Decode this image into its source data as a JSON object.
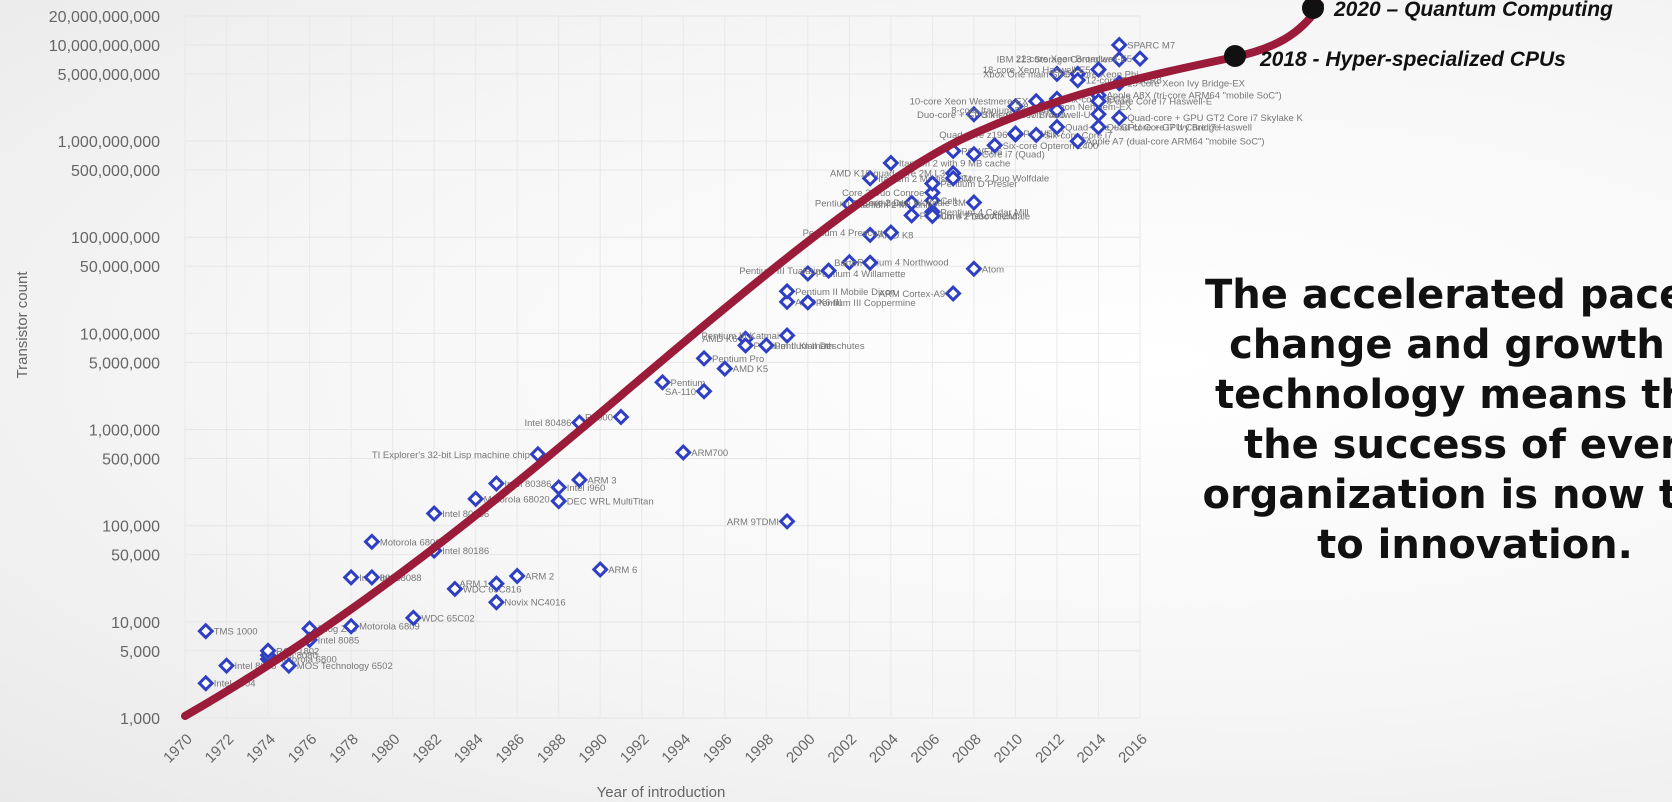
{
  "chart_data": {
    "type": "scatter",
    "title": "",
    "xlabel": "Year of introduction",
    "ylabel": "Transistor count",
    "y_scale": "log",
    "xlim": [
      1970,
      2016
    ],
    "ylim": [
      1000,
      20000000000
    ],
    "x_ticks": [
      "1970",
      "1972",
      "1974",
      "1976",
      "1978",
      "1980",
      "1982",
      "1984",
      "1986",
      "1988",
      "1990",
      "1992",
      "1994",
      "1996",
      "1998",
      "2000",
      "2002",
      "2004",
      "2006",
      "2008",
      "2010",
      "2012",
      "2014",
      "2016"
    ],
    "y_ticks": [
      {
        "value": 1000,
        "label": "1,000"
      },
      {
        "value": 5000,
        "label": "5,000"
      },
      {
        "value": 10000,
        "label": "10,000"
      },
      {
        "value": 50000,
        "label": "50,000"
      },
      {
        "value": 100000,
        "label": "100,000"
      },
      {
        "value": 500000,
        "label": "500,000"
      },
      {
        "value": 1000000,
        "label": "1,000,000"
      },
      {
        "value": 5000000,
        "label": "5,000,000"
      },
      {
        "value": 10000000,
        "label": "10,000,000"
      },
      {
        "value": 50000000,
        "label": "50,000,000"
      },
      {
        "value": 100000000,
        "label": "100,000,000"
      },
      {
        "value": 500000000,
        "label": "500,000,000"
      },
      {
        "value": 1000000000,
        "label": "1,000,000,000"
      },
      {
        "value": 5000000000,
        "label": "5,000,000,000"
      },
      {
        "value": 10000000000,
        "label": "10,000,000,000"
      },
      {
        "value": 20000000000,
        "label": "20,000,000,000"
      }
    ],
    "grid": true,
    "marker_color": "#2f3fc4",
    "trend_color": "#9b1b3a",
    "points": [
      {
        "x": 1971,
        "y": 2300,
        "label": "Intel 4004"
      },
      {
        "x": 1971,
        "y": 8000,
        "label": "TMS 1000"
      },
      {
        "x": 1972,
        "y": 3500,
        "label": "Intel 8008"
      },
      {
        "x": 1974,
        "y": 4100,
        "label": "Motorola 6800"
      },
      {
        "x": 1974,
        "y": 4500,
        "label": "Intel 8080"
      },
      {
        "x": 1974,
        "y": 5000,
        "label": "RCA 1802"
      },
      {
        "x": 1975,
        "y": 3500,
        "label": "MOS Technology 6502"
      },
      {
        "x": 1976,
        "y": 8500,
        "label": "Zilog Z80"
      },
      {
        "x": 1976,
        "y": 6500,
        "label": "Intel 8085"
      },
      {
        "x": 1978,
        "y": 29000,
        "label": "Intel 8086"
      },
      {
        "x": 1978,
        "y": 9000,
        "label": "Motorola 6809"
      },
      {
        "x": 1979,
        "y": 68000,
        "label": "Motorola 68000"
      },
      {
        "x": 1979,
        "y": 29000,
        "label": "Intel 8088"
      },
      {
        "x": 1981,
        "y": 11000,
        "label": "WDC 65C02"
      },
      {
        "x": 1982,
        "y": 134000,
        "label": "Intel 80286"
      },
      {
        "x": 1982,
        "y": 55000,
        "label": "Intel 80186"
      },
      {
        "x": 1983,
        "y": 22000,
        "label": "WDC 65C816"
      },
      {
        "x": 1984,
        "y": 190000,
        "label": "Motorola 68020"
      },
      {
        "x": 1985,
        "y": 275000,
        "label": "Intel 80386"
      },
      {
        "x": 1985,
        "y": 25000,
        "label": "ARM 1"
      },
      {
        "x": 1985,
        "y": 16000,
        "label": "Novix NC4016"
      },
      {
        "x": 1986,
        "y": 30000,
        "label": "ARM 2"
      },
      {
        "x": 1987,
        "y": 553000,
        "label": "TI Explorer's 32-bit Lisp machine chip"
      },
      {
        "x": 1988,
        "y": 250000,
        "label": "Intel i960"
      },
      {
        "x": 1988,
        "y": 180000,
        "label": "DEC WRL MultiTitan"
      },
      {
        "x": 1989,
        "y": 1180000,
        "label": "Intel 80486"
      },
      {
        "x": 1989,
        "y": 300000,
        "label": "ARM 3"
      },
      {
        "x": 1990,
        "y": 35000,
        "label": "ARM 6"
      },
      {
        "x": 1991,
        "y": 1350000,
        "label": "R4000"
      },
      {
        "x": 1993,
        "y": 3100000,
        "label": "Pentium"
      },
      {
        "x": 1994,
        "y": 578000,
        "label": "ARM700"
      },
      {
        "x": 1995,
        "y": 2500000,
        "label": "SA-110"
      },
      {
        "x": 1995,
        "y": 5500000,
        "label": "Pentium Pro"
      },
      {
        "x": 1996,
        "y": 4300000,
        "label": "AMD K5"
      },
      {
        "x": 1997,
        "y": 8800000,
        "label": "AMD K6"
      },
      {
        "x": 1997,
        "y": 7500000,
        "label": "Pentium II Klamath"
      },
      {
        "x": 1998,
        "y": 7500000,
        "label": "Pentium II Deschutes"
      },
      {
        "x": 1999,
        "y": 9500000,
        "label": "Pentium III Katmai"
      },
      {
        "x": 1999,
        "y": 21300000,
        "label": "AMD K6-III"
      },
      {
        "x": 1999,
        "y": 27400000,
        "label": "Pentium II Mobile Dixon"
      },
      {
        "x": 1999,
        "y": 111000,
        "label": "ARM 9TDMI"
      },
      {
        "x": 2000,
        "y": 21000000,
        "label": "Pentium III Coppermine"
      },
      {
        "x": 2000,
        "y": 42000000,
        "label": "Pentium 4 Willamette"
      },
      {
        "x": 2001,
        "y": 45000000,
        "label": "Pentium III Tualatin"
      },
      {
        "x": 2002,
        "y": 55000000,
        "label": "Pentium 4 Northwood"
      },
      {
        "x": 2002,
        "y": 220000000,
        "label": "Itanium 2 McKinley"
      },
      {
        "x": 2003,
        "y": 54300000,
        "label": "Barton"
      },
      {
        "x": 2003,
        "y": 105900000,
        "label": "AMD K8"
      },
      {
        "x": 2003,
        "y": 410000000,
        "label": "Itanium 2 Madison 6M"
      },
      {
        "x": 2004,
        "y": 112000000,
        "label": "Pentium 4 Prescott"
      },
      {
        "x": 2004,
        "y": 592000000,
        "label": "Itanium 2 with 9 MB cache"
      },
      {
        "x": 2005,
        "y": 169000000,
        "label": "Pentium 4 Prescott-2M"
      },
      {
        "x": 2005,
        "y": 228000000,
        "label": "Pentium D Smithfield"
      },
      {
        "x": 2006,
        "y": 184000000,
        "label": "Pentium 4 Cedar Mill"
      },
      {
        "x": 2006,
        "y": 241000000,
        "label": "Cell"
      },
      {
        "x": 2006,
        "y": 291000000,
        "label": "Core 2 Duo Conroe"
      },
      {
        "x": 2006,
        "y": 362000000,
        "label": "Pentium D Presler"
      },
      {
        "x": 2006,
        "y": 167000000,
        "label": "Core 2 Duo Allendale"
      },
      {
        "x": 2007,
        "y": 463000000,
        "label": "AMD K10 quad-core 2M L3"
      },
      {
        "x": 2007,
        "y": 411000000,
        "label": "Core 2 Duo Wolfdale"
      },
      {
        "x": 2007,
        "y": 790000000,
        "label": "POWER6"
      },
      {
        "x": 2007,
        "y": 26000000,
        "label": "ARM Cortex-A9"
      },
      {
        "x": 2008,
        "y": 47000000,
        "label": "Atom"
      },
      {
        "x": 2008,
        "y": 731000000,
        "label": "Core i7 (Quad)"
      },
      {
        "x": 2008,
        "y": 230000000,
        "label": "Core 2 Duo Wolfdale 3M"
      },
      {
        "x": 2008,
        "y": 1900000000,
        "label": "Six-core Xeon 7400"
      },
      {
        "x": 2009,
        "y": 904000000,
        "label": "Six-core Opteron 2400"
      },
      {
        "x": 2010,
        "y": 1170000000,
        "label": "Quad-core z196"
      },
      {
        "x": 2010,
        "y": 2300000000,
        "label": "8-core Xeon Nehalem-EX"
      },
      {
        "x": 2010,
        "y": 1200000000,
        "label": "POWER7"
      },
      {
        "x": 2011,
        "y": 2600000000,
        "label": "10-core Xeon Westmere-EX"
      },
      {
        "x": 2011,
        "y": 1160000000,
        "label": "Six-core Core i7"
      },
      {
        "x": 2012,
        "y": 5000000000,
        "label": "61-core Xeon Phi"
      },
      {
        "x": 2012,
        "y": 2100000000,
        "label": "8-core Itanium Poulson"
      },
      {
        "x": 2012,
        "y": 1400000000,
        "label": "Quad-core + GPU Core i7 Ivy Bridge"
      },
      {
        "x": 2012,
        "y": 2750000000,
        "label": "Six-core zEC12"
      },
      {
        "x": 2013,
        "y": 5000000000,
        "label": "Xbox One main SoC"
      },
      {
        "x": 2013,
        "y": 4310000000,
        "label": "12-core POWER8"
      },
      {
        "x": 2013,
        "y": 1000000000,
        "label": "Apple A7 (dual-core ARM64 \"mobile SoC\")"
      },
      {
        "x": 2014,
        "y": 5560000000,
        "label": "18-core Xeon Haswell-E5"
      },
      {
        "x": 2014,
        "y": 3000000000,
        "label": "Apple A8X (tri-core ARM64 \"mobile SoC\")"
      },
      {
        "x": 2014,
        "y": 2600000000,
        "label": "8-core Core i7 Haswell-E"
      },
      {
        "x": 2014,
        "y": 1900000000,
        "label": "Duo-core + GPU Iris Core i7 Broadwell-U"
      },
      {
        "x": 2014,
        "y": 1400000000,
        "label": "Quad-core + GPU Core i7 Haswell"
      },
      {
        "x": 2015,
        "y": 10000000000,
        "label": "SPARC M7"
      },
      {
        "x": 2015,
        "y": 7100000000,
        "label": "IBM z13 Storage Controller"
      },
      {
        "x": 2015,
        "y": 4000000000,
        "label": "15-core Xeon Ivy Bridge-EX"
      },
      {
        "x": 2015,
        "y": 1750000000,
        "label": "Quad-core + GPU GT2 Core i7 Skylake K"
      },
      {
        "x": 2016,
        "y": 7200000000,
        "label": "22-core Xeon Broadwell-E5"
      }
    ],
    "milestones": [
      {
        "label": "2018 - Hyper-specialized CPUs"
      },
      {
        "label": "2020 – Quantum Computing"
      }
    ]
  },
  "headline": "The accelerated pace of\nchange and growth in\ntechnology means that\nthe success of every\norganization is now tied\nto innovation."
}
